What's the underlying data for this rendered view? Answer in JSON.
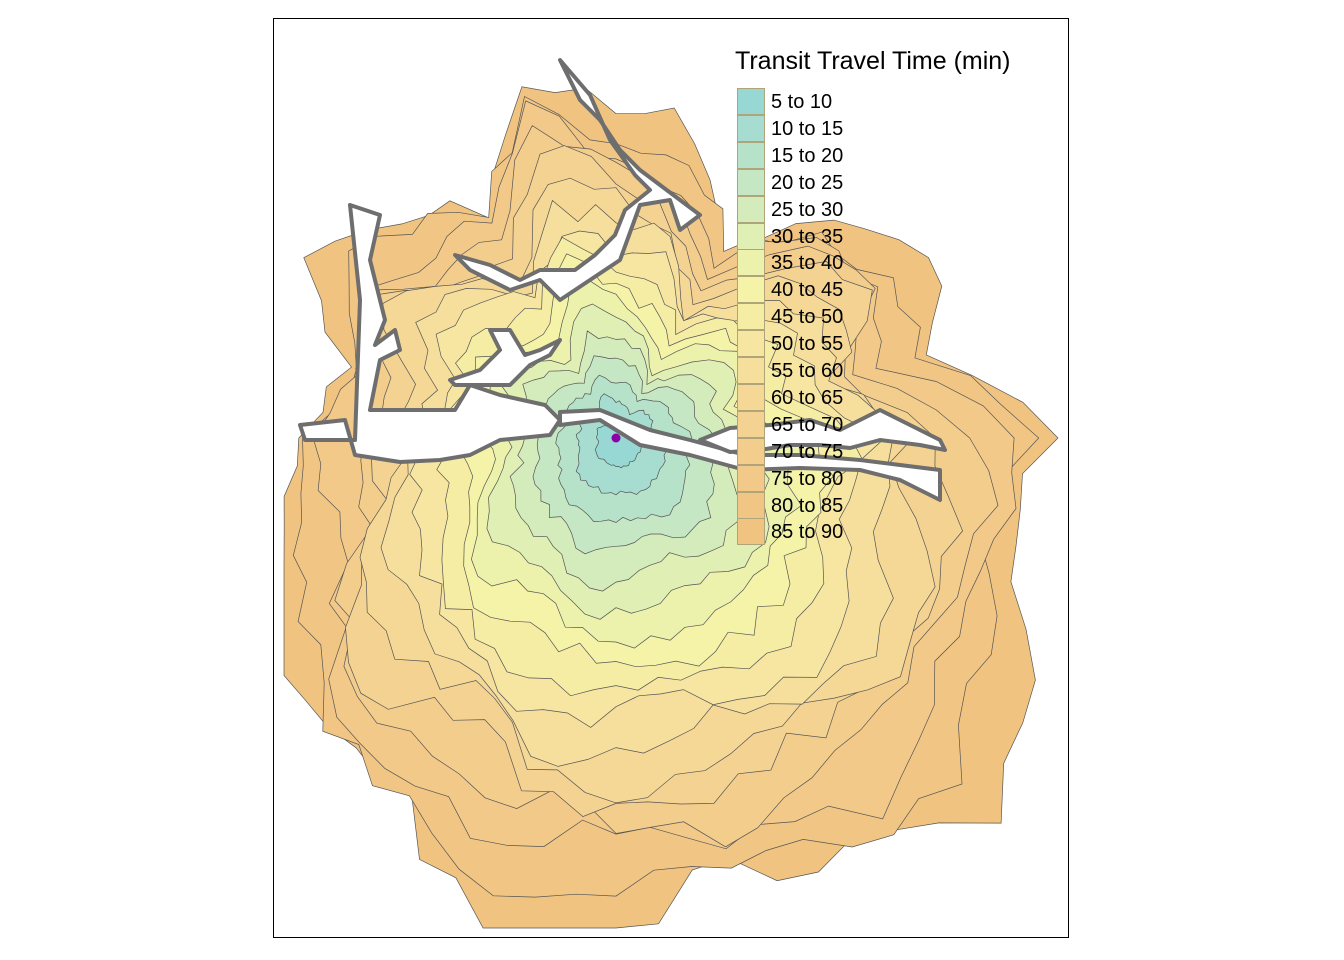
{
  "legend": {
    "title": "Transit Travel Time (min)",
    "classes": [
      {
        "label": "5 to 10",
        "color": "#97d8d5"
      },
      {
        "label": "10 to 15",
        "color": "#a6ddd0"
      },
      {
        "label": "15 to 20",
        "color": "#b6e2ca"
      },
      {
        "label": "20 to 25",
        "color": "#c6e7c3"
      },
      {
        "label": "25 to 30",
        "color": "#d4ebbb"
      },
      {
        "label": "30 to 35",
        "color": "#e0efb3"
      },
      {
        "label": "35 to 40",
        "color": "#ecf2ab"
      },
      {
        "label": "40 to 45",
        "color": "#f4f3a7"
      },
      {
        "label": "45 to 50",
        "color": "#f6eda5"
      },
      {
        "label": "50 to 55",
        "color": "#f7e6a1"
      },
      {
        "label": "55 to 60",
        "color": "#f6df9c"
      },
      {
        "label": "60 to 65",
        "color": "#f5d896"
      },
      {
        "label": "65 to 70",
        "color": "#f4d291"
      },
      {
        "label": "70 to 75",
        "color": "#f3cd8c"
      },
      {
        "label": "75 to 80",
        "color": "#f2c988"
      },
      {
        "label": "80 to 85",
        "color": "#f1c684"
      },
      {
        "label": "85 to 90",
        "color": "#f0c381"
      }
    ]
  },
  "map": {
    "origin_point_color": "#8b00a8",
    "contour_line_color": "#555555",
    "shoreline_color": "#6e6e6e"
  }
}
